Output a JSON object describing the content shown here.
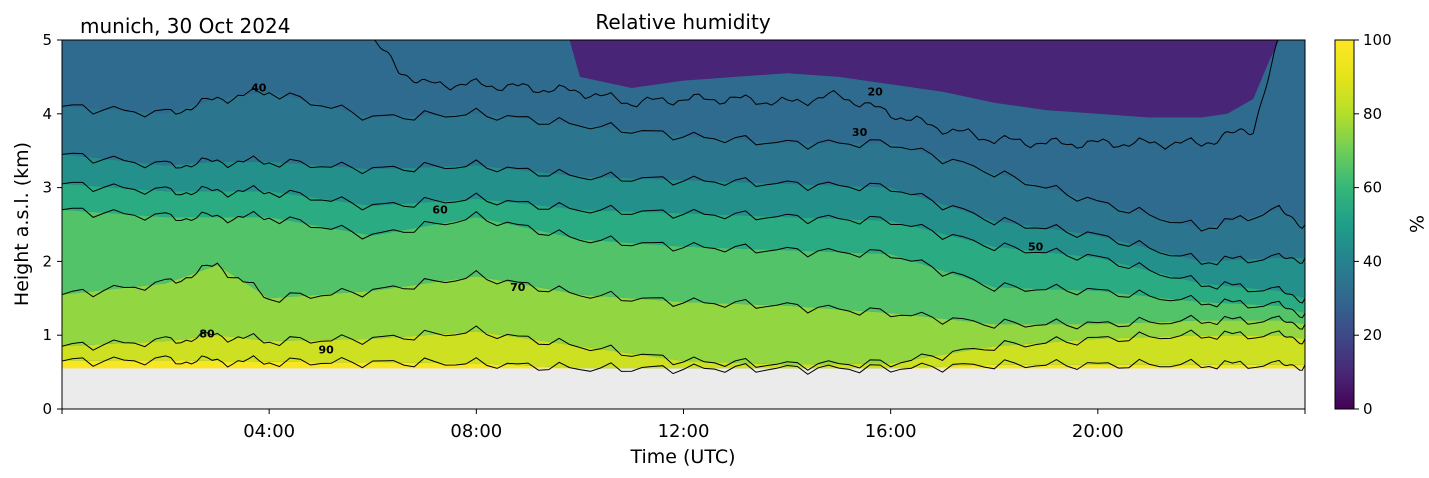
{
  "chart_data": {
    "type": "heatmap",
    "title": "Relative humidity",
    "location_date": "munich, 30 Oct 2024",
    "xlabel": "Time (UTC)",
    "ylabel": "Height a.s.l. (km)",
    "xlim_hours": [
      0,
      24
    ],
    "ylim_km": [
      0,
      5
    ],
    "x_ticks": [
      {
        "hour": 4,
        "label": "04:00"
      },
      {
        "hour": 8,
        "label": "08:00"
      },
      {
        "hour": 12,
        "label": "12:00"
      },
      {
        "hour": 16,
        "label": "16:00"
      },
      {
        "hour": 20,
        "label": "20:00"
      }
    ],
    "y_ticks": [
      {
        "value": 0,
        "label": "0"
      },
      {
        "value": 1,
        "label": "1"
      },
      {
        "value": 2,
        "label": "2"
      },
      {
        "value": 3,
        "label": "3"
      },
      {
        "value": 4,
        "label": "4"
      },
      {
        "value": 5,
        "label": "5"
      }
    ],
    "colorbar": {
      "label": "%",
      "range": [
        0,
        100
      ],
      "colormap": "viridis",
      "ticks": [
        {
          "value": 0,
          "label": "0"
        },
        {
          "value": 20,
          "label": "20"
        },
        {
          "value": 40,
          "label": "40"
        },
        {
          "value": 60,
          "label": "60"
        },
        {
          "value": 80,
          "label": "80"
        },
        {
          "value": 100,
          "label": "100"
        }
      ]
    },
    "no_data_below_km": 0.55,
    "no_data_color": "#ebebeb",
    "contour_hours": [
      0,
      2,
      3,
      4,
      6,
      8,
      10,
      12,
      14,
      16,
      18,
      20,
      22,
      23.5,
      24
    ],
    "contours": [
      {
        "level": 90,
        "label": "90",
        "label_at": {
          "hour": 5.1,
          "km": 0.75
        },
        "km": [
          0.65,
          0.66,
          0.65,
          0.64,
          0.63,
          0.62,
          0.55,
          0.55,
          0.55,
          0.55,
          0.6,
          0.6,
          0.6,
          0.6,
          0.6
        ]
      },
      {
        "level": 80,
        "label": "80",
        "label_at": {
          "hour": 2.8,
          "km": 0.97
        },
        "km": [
          0.85,
          0.92,
          1.0,
          0.92,
          0.95,
          1.05,
          0.85,
          0.65,
          0.6,
          0.62,
          0.85,
          0.95,
          1.0,
          1.0,
          0.95
        ]
      },
      {
        "level": 70,
        "label": "70",
        "label_at": {
          "hour": 8.8,
          "km": 1.6
        },
        "km": [
          1.55,
          1.7,
          1.95,
          1.5,
          1.6,
          1.8,
          1.55,
          1.45,
          1.4,
          1.3,
          1.15,
          1.15,
          1.2,
          1.2,
          1.15
        ]
      },
      {
        "level": 60,
        "label": "60",
        "label_at": {
          "hour": 7.3,
          "km": 2.65
        },
        "km": [
          2.7,
          2.6,
          2.6,
          2.6,
          2.35,
          2.6,
          2.3,
          2.2,
          2.15,
          2.1,
          1.65,
          1.6,
          1.45,
          1.4,
          1.3
        ]
      },
      {
        "level": 50,
        "label": "50",
        "label_at": {
          "hour": 18.8,
          "km": 2.15
        },
        "km": [
          3.05,
          2.95,
          2.95,
          2.95,
          2.75,
          2.85,
          2.7,
          2.65,
          2.6,
          2.55,
          2.2,
          2.05,
          1.7,
          1.6,
          1.5
        ]
      },
      {
        "level": 40,
        "label": "40",
        "label_at": {
          "hour": 3.8,
          "km": 4.3
        },
        "km": [
          3.45,
          3.3,
          3.35,
          3.35,
          3.25,
          3.3,
          3.15,
          3.1,
          3.05,
          3.0,
          2.55,
          2.35,
          2.0,
          2.05,
          2.05
        ]
      },
      {
        "level": 30,
        "label": "30",
        "label_at": {
          "hour": 15.4,
          "km": 3.7
        },
        "km": [
          4.1,
          4.0,
          4.2,
          4.3,
          3.95,
          4.0,
          3.85,
          3.7,
          3.6,
          3.6,
          3.2,
          2.8,
          2.45,
          2.7,
          2.5
        ]
      }
    ],
    "contour_20": {
      "level": 20,
      "label": "20",
      "label_at": {
        "hour": 15.7,
        "km": 4.25
      },
      "x_hours": [
        6,
        6.5,
        7,
        8,
        9,
        10,
        11,
        12,
        13,
        14,
        15,
        16,
        17,
        18,
        19,
        20,
        21,
        22,
        22.5,
        23,
        23.3,
        23.5
      ],
      "km": [
        5.0,
        4.6,
        4.4,
        4.4,
        4.35,
        4.3,
        4.15,
        4.2,
        4.2,
        4.15,
        4.25,
        4.0,
        3.8,
        3.65,
        3.6,
        3.6,
        3.6,
        3.6,
        3.7,
        3.8,
        4.5,
        5.0
      ]
    },
    "dry_region_boundary": {
      "x_hours": [
        9.8,
        10,
        11,
        12,
        13,
        14,
        15,
        16,
        17,
        18,
        19,
        20,
        21,
        22,
        22.5,
        23,
        23.3,
        23.5
      ],
      "km": [
        5.0,
        4.5,
        4.35,
        4.45,
        4.5,
        4.55,
        4.5,
        4.4,
        4.3,
        4.15,
        4.05,
        4.0,
        3.95,
        3.95,
        4.0,
        4.2,
        4.7,
        5.0
      ]
    }
  }
}
